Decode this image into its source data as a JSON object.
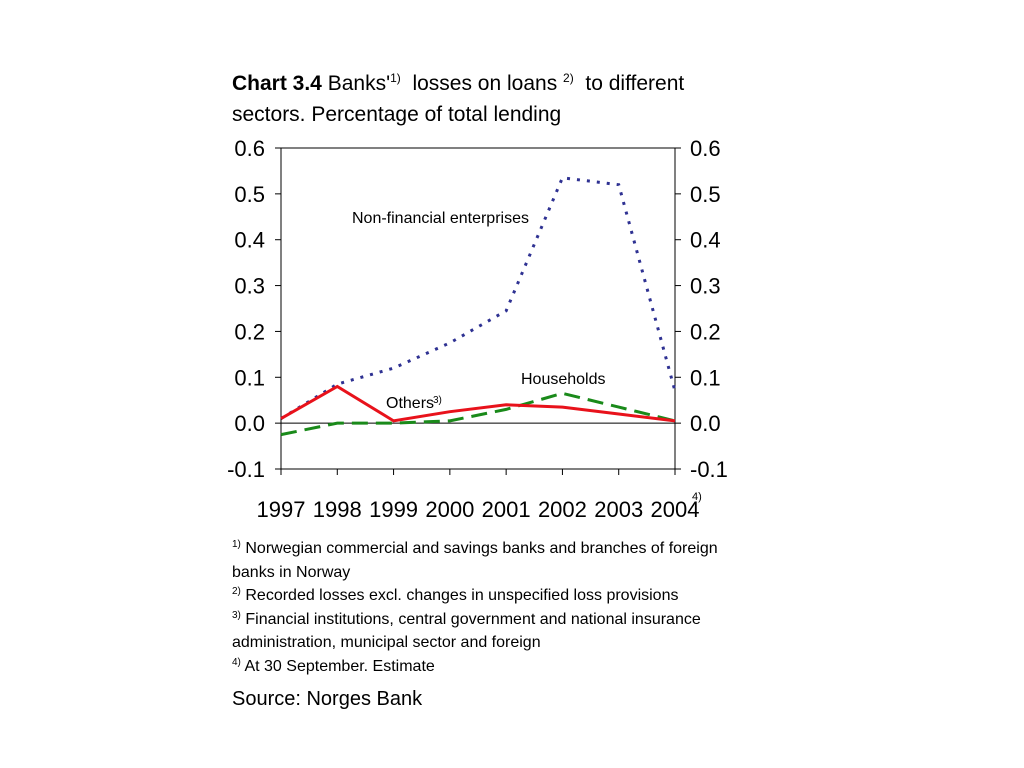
{
  "title": {
    "chart_label": "Chart 3.4",
    "part1": "Banks'",
    "sup1": "1)",
    "part2": "losses on loans",
    "sup2": "2)",
    "part3": "to different sectors. Percentage of total lending"
  },
  "chart_data": {
    "type": "line",
    "x": [
      1997,
      1998,
      1999,
      2000,
      2001,
      2002,
      2003,
      2004
    ],
    "x_tick_labels": [
      "1997",
      "1998",
      "1999",
      "2000",
      "2001",
      "2002",
      "2003",
      "2004"
    ],
    "x_last_tick_note": "4)",
    "y_tick_labels": [
      "0.6",
      "0.5",
      "0.4",
      "0.3",
      "0.2",
      "0.1",
      "0.0",
      "-0.1"
    ],
    "ylim": [
      -0.1,
      0.6
    ],
    "dual_y_axis": true,
    "grid": false,
    "zero_line": true,
    "series": [
      {
        "name": "Non-financial enterprises",
        "style": "dotted",
        "color": "#2e3192",
        "values": [
          0.01,
          0.085,
          0.12,
          0.175,
          0.245,
          0.535,
          0.52,
          0.07
        ]
      },
      {
        "name": "Households",
        "style": "dashed",
        "color": "#1a8a1a",
        "values": [
          -0.025,
          0.0,
          0.0,
          0.005,
          0.03,
          0.065,
          0.035,
          0.005
        ]
      },
      {
        "name": "Others",
        "name_note": "3)",
        "style": "solid",
        "color": "#e8121b",
        "values": [
          0.01,
          0.08,
          0.005,
          0.025,
          0.04,
          0.035,
          0.02,
          0.005
        ]
      }
    ],
    "annotations": {
      "enterprises": "Non-financial enterprises",
      "households": "Households",
      "others": "Others",
      "others_note": "3)"
    }
  },
  "notes": [
    {
      "mark": "1)",
      "text": "Norwegian commercial and savings banks and branches of foreign banks in Norway"
    },
    {
      "mark": "2)",
      "text": "Recorded losses excl. changes in unspecified loss provisions"
    },
    {
      "mark": "3)",
      "text": "Financial institutions, central government and national insurance administration, municipal sector and foreign"
    },
    {
      "mark": "4)",
      "text": "At 30 September. Estimate"
    }
  ],
  "source": "Source: Norges Bank"
}
